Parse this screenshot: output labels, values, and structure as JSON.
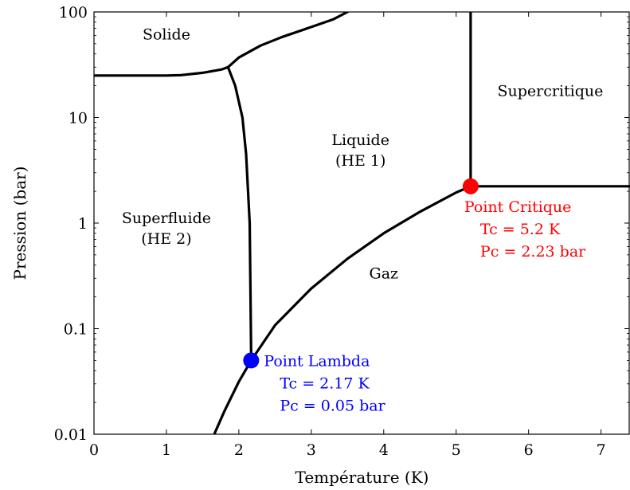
{
  "chart_data": {
    "type": "line",
    "xlabel": "Température (K)",
    "ylabel": "Pression (bar)",
    "xlim": [
      0,
      7.4
    ],
    "ylim": [
      0.01,
      100
    ],
    "yscale": "log",
    "grid": false,
    "x_ticks": [
      0,
      1,
      2,
      3,
      4,
      5,
      6,
      7
    ],
    "y_ticks": [
      {
        "value": 0.01,
        "label": "0.01"
      },
      {
        "value": 0.1,
        "label": "0.1"
      },
      {
        "value": 1,
        "label": "1"
      },
      {
        "value": 10,
        "label": "10"
      },
      {
        "value": 100,
        "label": "100"
      }
    ],
    "series": [
      {
        "key": "melting",
        "x": [
          0,
          1.0,
          1.2,
          1.5,
          1.76,
          1.85
        ],
        "y": [
          25,
          25,
          25.2,
          26.5,
          28.5,
          30
        ]
      },
      {
        "key": "solid_upper",
        "x": [
          1.85,
          2.0,
          2.3,
          2.6,
          3.0,
          3.3,
          3.5
        ],
        "y": [
          30,
          37,
          48,
          58,
          72,
          85,
          100
        ]
      },
      {
        "key": "lambda",
        "x": [
          1.85,
          1.95,
          2.05,
          2.1,
          2.15,
          2.16,
          2.17
        ],
        "y": [
          30,
          20,
          10,
          4.5,
          1.0,
          0.25,
          0.05
        ]
      },
      {
        "key": "vaporization",
        "x": [
          1.66,
          1.8,
          2.0,
          2.17,
          2.5,
          3.0,
          3.5,
          4.0,
          4.5,
          5.0,
          5.2
        ],
        "y": [
          0.01,
          0.0165,
          0.0315,
          0.05,
          0.108,
          0.24,
          0.46,
          0.8,
          1.28,
          1.95,
          2.23
        ]
      },
      {
        "key": "critical_vertical",
        "x": [
          5.2,
          5.2
        ],
        "y": [
          2.23,
          100
        ]
      },
      {
        "key": "critical_horizontal",
        "x": [
          5.2,
          7.4
        ],
        "y": [
          2.23,
          2.23
        ]
      }
    ],
    "points": [
      {
        "key": "lambda_point",
        "x": 2.17,
        "y": 0.05,
        "color": "#0000ff",
        "label": "Point Lambda",
        "lines": [
          "Tc = 2.17 K",
          "Pc = 0.05 bar"
        ]
      },
      {
        "key": "critical_point",
        "x": 5.2,
        "y": 2.23,
        "color": "#ff0000",
        "label": "Point Critique",
        "lines": [
          "Tc = 5.2 K",
          "Pc = 2.23 bar"
        ]
      }
    ],
    "regions": [
      {
        "key": "solid",
        "lines": [
          "Solide"
        ],
        "x": 1.0,
        "y": 55
      },
      {
        "key": "supercritical",
        "lines": [
          "Supercritique"
        ],
        "x": 6.3,
        "y": 16
      },
      {
        "key": "liquid",
        "lines": [
          "Liquide",
          "(HE 1)"
        ],
        "x": 3.68,
        "y": 5.5
      },
      {
        "key": "superfluid",
        "lines": [
          "Superfluide",
          "(HE 2)"
        ],
        "x": 1.0,
        "y": 1.0
      },
      {
        "key": "gas",
        "lines": [
          "Gaz"
        ],
        "x": 4.0,
        "y": 0.3
      }
    ]
  }
}
